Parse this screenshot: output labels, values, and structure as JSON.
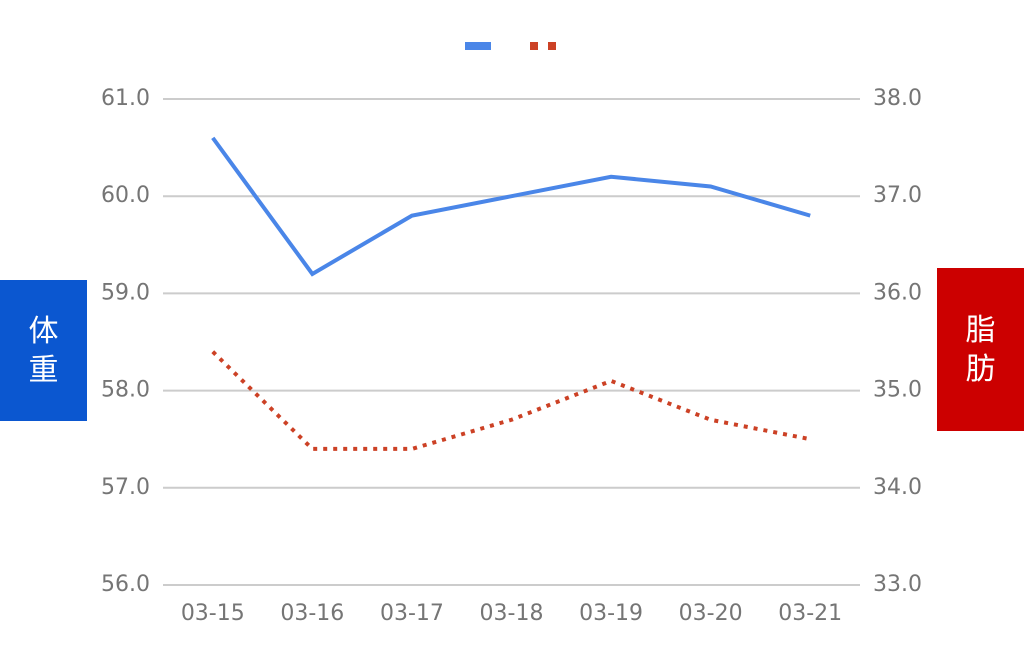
{
  "chart_data": {
    "type": "line",
    "categories": [
      "03-15",
      "03-16",
      "03-17",
      "03-18",
      "03-19",
      "03-20",
      "03-21"
    ],
    "series": [
      {
        "color": "#4a86e8",
        "style": "solid",
        "values": [
          60.6,
          59.2,
          59.8,
          60.0,
          60.2,
          60.1,
          59.8
        ]
      },
      {
        "color": "#cc4125",
        "style": "dotted",
        "axis": "y2",
        "values": [
          35.4,
          34.4,
          34.4,
          34.7,
          35.1,
          34.7,
          34.5
        ]
      }
    ],
    "ylim": [
      56,
      61
    ],
    "yticks": [
      {
        "value": 56,
        "label": "56.0"
      },
      {
        "value": 57,
        "label": "57.0"
      },
      {
        "value": 58,
        "label": "58.0"
      },
      {
        "value": 59,
        "label": "59.0"
      },
      {
        "value": 60,
        "label": "60.0"
      },
      {
        "value": 61,
        "label": "61.0"
      }
    ],
    "y2lim": [
      33,
      38
    ],
    "y2ticks": [
      {
        "value": 33,
        "label": "33.0"
      },
      {
        "value": 34,
        "label": "34.0"
      },
      {
        "value": 35,
        "label": "35.0"
      },
      {
        "value": 36,
        "label": "36.0"
      },
      {
        "value": 37,
        "label": "37.0"
      },
      {
        "value": 38,
        "label": "38.0"
      }
    ],
    "y_label": "体重",
    "y_label_color": "#0b57d0",
    "y2_label": "脂肪",
    "y2_label_color": "#cc0000",
    "grid": true,
    "legend": "top"
  }
}
